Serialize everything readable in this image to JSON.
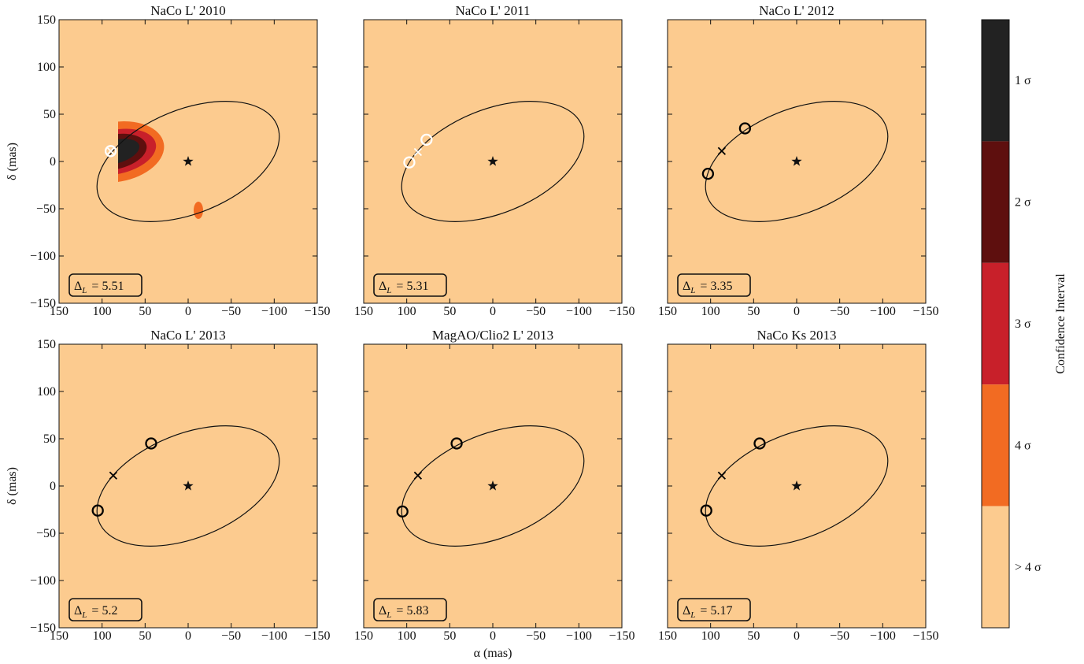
{
  "chart_data": [
    {
      "type": "contour",
      "title": "NaCo L' 2010",
      "ylabel": "δ (mas)",
      "xlim": [
        150,
        -150
      ],
      "ylim": [
        -150,
        150
      ],
      "xticks": [
        150,
        100,
        50,
        0,
        {
          "value": -50,
          "label": "−50"
        },
        {
          "value": -100,
          "label": "−100"
        },
        {
          "value": -150,
          "label": "−150"
        }
      ],
      "yticks": [
        {
          "value": -150,
          "label": "−150"
        },
        {
          "value": -100,
          "label": "−100"
        },
        {
          "value": -50,
          "label": "−50"
        },
        0,
        50,
        100,
        150
      ],
      "ytick_labels": true,
      "annotation": {
        "symbol": "Δ",
        "subscript": "L",
        "text": "= 5.51"
      },
      "stars": {
        "x": [
          0
        ],
        "y": [
          0
        ]
      },
      "circles": {
        "x": [
          90
        ],
        "y": [
          11
        ]
      },
      "crosses": {
        "x": [
          90
        ],
        "y": [
          11
        ]
      },
      "marker_color": "#ffffff"
    },
    {
      "type": "contour",
      "title": "NaCo L' 2011",
      "xlim": [
        150,
        -150
      ],
      "ylim": [
        -150,
        150
      ],
      "xticks": [
        150,
        100,
        50,
        0,
        {
          "value": -50,
          "label": "−50"
        },
        {
          "value": -100,
          "label": "−100"
        },
        {
          "value": -150,
          "label": "−150"
        }
      ],
      "yticks": [
        -150,
        -100,
        -50,
        0,
        50,
        100,
        150
      ],
      "ytick_labels": false,
      "annotation": {
        "symbol": "Δ",
        "subscript": "L",
        "text": "= 5.31"
      },
      "stars": {
        "x": [
          0
        ],
        "y": [
          0
        ]
      },
      "circles": {
        "x": [
          97,
          77
        ],
        "y": [
          -1,
          23
        ]
      },
      "crosses": {
        "x": [
          87
        ],
        "y": [
          10
        ]
      },
      "marker_color": "#ffffff"
    },
    {
      "type": "contour",
      "title": "NaCo L' 2012",
      "xlim": [
        150,
        -150
      ],
      "ylim": [
        -150,
        150
      ],
      "xticks": [
        150,
        100,
        50,
        0,
        {
          "value": -50,
          "label": "−50"
        },
        {
          "value": -100,
          "label": "−100"
        },
        {
          "value": -150,
          "label": "−150"
        }
      ],
      "yticks": [
        -150,
        -100,
        -50,
        0,
        50,
        100,
        150
      ],
      "ytick_labels": false,
      "annotation": {
        "symbol": "Δ",
        "subscript": "L",
        "text": "= 3.35"
      },
      "stars": {
        "x": [
          0
        ],
        "y": [
          0
        ]
      },
      "circles": {
        "x": [
          103,
          60
        ],
        "y": [
          -13,
          35
        ]
      },
      "crosses": {
        "x": [
          87
        ],
        "y": [
          11
        ]
      },
      "marker_color": "#000000"
    },
    {
      "type": "contour",
      "title": "NaCo L' 2013",
      "ylabel": "δ (mas)",
      "xlim": [
        150,
        -150
      ],
      "ylim": [
        -150,
        150
      ],
      "xticks": [
        150,
        100,
        50,
        0,
        {
          "value": -50,
          "label": "−50"
        },
        {
          "value": -100,
          "label": "−100"
        },
        {
          "value": -150,
          "label": "−150"
        }
      ],
      "yticks": [
        {
          "value": -150,
          "label": "−150"
        },
        {
          "value": -100,
          "label": "−100"
        },
        {
          "value": -50,
          "label": "−50"
        },
        0,
        50,
        100,
        150
      ],
      "ytick_labels": true,
      "annotation": {
        "symbol": "Δ",
        "subscript": "L",
        "text": "= 5.2"
      },
      "stars": {
        "x": [
          0
        ],
        "y": [
          0
        ]
      },
      "circles": {
        "x": [
          105,
          43
        ],
        "y": [
          -26,
          45
        ]
      },
      "crosses": {
        "x": [
          87
        ],
        "y": [
          11
        ]
      },
      "marker_color": "#000000"
    },
    {
      "type": "contour",
      "title": "MagAO/Clio2 L' 2013",
      "xlabel": "α (mas)",
      "xlim": [
        150,
        -150
      ],
      "ylim": [
        -150,
        150
      ],
      "xticks": [
        150,
        100,
        50,
        0,
        {
          "value": -50,
          "label": "−50"
        },
        {
          "value": -100,
          "label": "−100"
        },
        {
          "value": -150,
          "label": "−150"
        }
      ],
      "yticks": [
        -150,
        -100,
        -50,
        0,
        50,
        100,
        150
      ],
      "ytick_labels": false,
      "annotation": {
        "symbol": "Δ",
        "subscript": "L",
        "text": "= 5.83"
      },
      "stars": {
        "x": [
          0
        ],
        "y": [
          0
        ]
      },
      "circles": {
        "x": [
          105,
          42
        ],
        "y": [
          -27,
          45
        ]
      },
      "crosses": {
        "x": [
          87
        ],
        "y": [
          11
        ]
      },
      "marker_color": "#000000"
    },
    {
      "type": "contour",
      "title": "NaCo Ks 2013",
      "xlim": [
        150,
        -150
      ],
      "ylim": [
        -150,
        150
      ],
      "xticks": [
        150,
        100,
        50,
        0,
        {
          "value": -50,
          "label": "−50"
        },
        {
          "value": -100,
          "label": "−100"
        },
        {
          "value": -150,
          "label": "−150"
        }
      ],
      "yticks": [
        -150,
        -100,
        -50,
        0,
        50,
        100,
        150
      ],
      "ytick_labels": false,
      "annotation": {
        "symbol": "Δ",
        "subscript": "L",
        "text": "= 5.17"
      },
      "stars": {
        "x": [
          0
        ],
        "y": [
          0
        ]
      },
      "circles": {
        "x": [
          105,
          43
        ],
        "y": [
          -26,
          45
        ]
      },
      "crosses": {
        "x": [
          87
        ],
        "y": [
          11
        ]
      },
      "marker_color": "#000000"
    },
    {
      "type": "colorbar",
      "title": "Confidence Interval",
      "categories": [
        "1 σ",
        "2 σ",
        "3 σ",
        "4 σ",
        "> 4 σ"
      ],
      "colors": [
        "#222222",
        "#5e0f0e",
        "#c8202a",
        "#f26b22",
        "#fccb8f"
      ]
    }
  ]
}
